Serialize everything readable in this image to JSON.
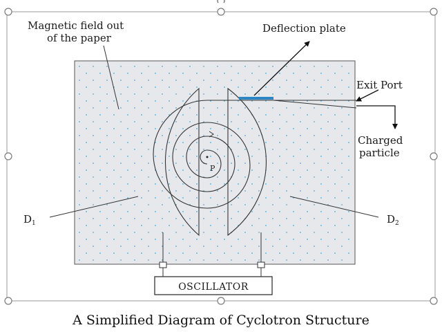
{
  "labels": {
    "magnetic_field": [
      "Magnetic field out",
      "of the paper"
    ],
    "deflection_plate": "Deflection plate",
    "exit_port": "Exit Port",
    "charged_particle": [
      "Charged",
      "particle"
    ],
    "d1": "D",
    "d1_sub": "1",
    "d2": "D",
    "d2_sub": "2",
    "center": "P",
    "oscillator": "OSCILLATOR"
  },
  "caption": "A Simplified Diagram of  Cyclotron Structure",
  "colors": {
    "field_dots": "#4aa8d8",
    "chamber_fill": "#e6e8ec",
    "deflection_plate": "#2a86c4",
    "lines": "#333333"
  }
}
